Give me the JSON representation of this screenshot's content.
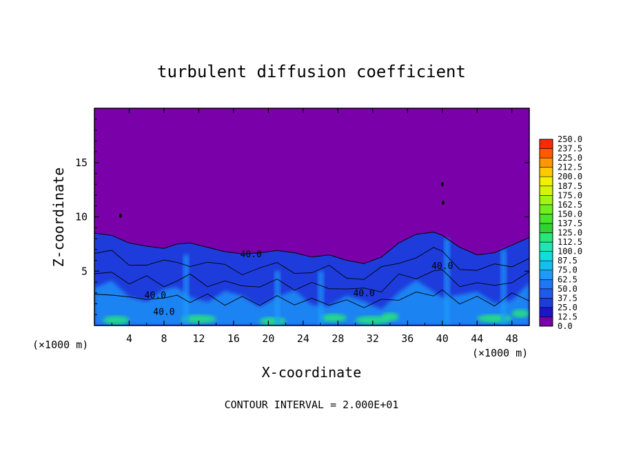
{
  "chart_data": {
    "type": "heatmap",
    "title": "turbulent diffusion coefficient",
    "xlabel": "X-coordinate",
    "ylabel": "Z-coordinate",
    "x_unit_left": "(×1000 m)",
    "x_unit_right": "(×1000 m)",
    "xlim": [
      0,
      50
    ],
    "ylim": [
      0,
      20
    ],
    "x_ticks": [
      "4",
      "8",
      "12",
      "16",
      "20",
      "24",
      "28",
      "32",
      "36",
      "40",
      "44",
      "48"
    ],
    "y_ticks": [
      "5",
      "10",
      "15"
    ],
    "footer": "CONTOUR INTERVAL = 2.000E+01",
    "contour_labels": [
      "40.0",
      "40.0",
      "40.0",
      "40.0",
      "40.0"
    ],
    "colorbar": {
      "levels": [
        "0.0",
        "12.5",
        "25.0",
        "37.5",
        "50.0",
        "62.5",
        "75.0",
        "87.5",
        "100.0",
        "112.5",
        "125.0",
        "137.5",
        "150.0",
        "162.5",
        "175.0",
        "187.5",
        "200.0",
        "212.5",
        "225.0",
        "237.5",
        "250.0"
      ],
      "colors": [
        "#7a00aa",
        "#1e14c8",
        "#1e3cdc",
        "#1e5aeb",
        "#1e78f5",
        "#1e9bfa",
        "#14bef0",
        "#14dcdc",
        "#1ee6b4",
        "#28e678",
        "#32d232",
        "#46e628",
        "#6ef01e",
        "#a0f514",
        "#d2f50a",
        "#f0f000",
        "#ffc800",
        "#ff9600",
        "#ff5a00",
        "#ff2800",
        "#ff6e6e"
      ]
    },
    "field_note_colors": {
      "background": "#7a00aa",
      "low": "#1e3cdc",
      "mid": "#1e9bfa",
      "high": "#28e678",
      "contour": "#000000"
    }
  }
}
